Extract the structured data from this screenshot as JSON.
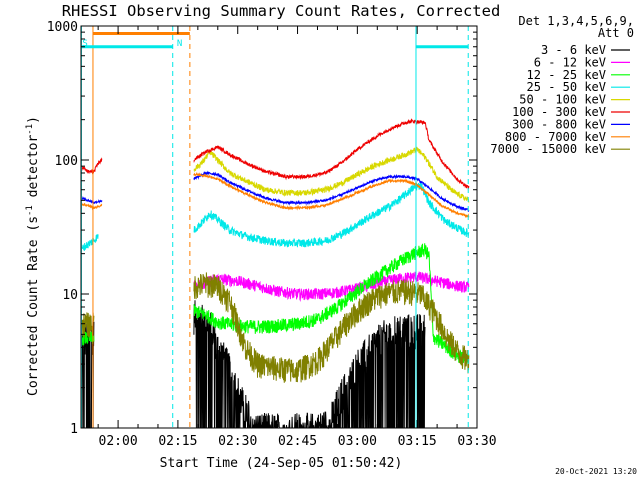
{
  "chart_data": {
    "type": "line",
    "title": "RHESSI Observing Summary Count Rates, Corrected",
    "xlabel": "Start Time (24-Sep-05 01:50:42)",
    "ylabel": "Corrected Count Rate (s",
    "ylabel_sup": "-1",
    "ylabel_mid": " detector",
    "ylabel_sup2": "-1",
    "ylabel_end": ")",
    "yscale": "log",
    "xlim": [
      110.7,
      210.0
    ],
    "ylim": [
      1,
      1000
    ],
    "x_unit": "minutes after 00:00 UT",
    "xticks": [
      {
        "v": 120,
        "label": "02:00"
      },
      {
        "v": 135,
        "label": "02:15"
      },
      {
        "v": 150,
        "label": "02:30"
      },
      {
        "v": 165,
        "label": "02:45"
      },
      {
        "v": 180,
        "label": "03:00"
      },
      {
        "v": 195,
        "label": "03:15"
      },
      {
        "v": 210,
        "label": "03:30"
      }
    ],
    "yticks": [
      {
        "v": 1,
        "label": "1"
      },
      {
        "v": 10,
        "label": "10"
      },
      {
        "v": 100,
        "label": "100"
      },
      {
        "v": 1000,
        "label": "1000"
      }
    ],
    "legend": {
      "header1": "Det 1,3,4,5,6,9,",
      "header2": "Att 0",
      "placement": "right"
    },
    "corner_label": "20-Oct-2021 13:20",
    "flag_labels": [
      {
        "text": "S",
        "x": 110.8
      },
      {
        "text": "N",
        "x": 134.5
      }
    ],
    "flags": [
      {
        "color": "#00e8e8",
        "start": 110.7,
        "end": 133.7,
        "y": 700
      },
      {
        "color": "#ff7f00",
        "start": 113.7,
        "end": 138.0,
        "y": 880
      },
      {
        "color": "#00e8e8",
        "start": 194.7,
        "end": 207.8,
        "y": 700
      }
    ],
    "vlines": [
      {
        "x": 110.8,
        "color": "#00e8e8",
        "style": "solid"
      },
      {
        "x": 113.7,
        "color": "#ff7f00",
        "style": "solid"
      },
      {
        "x": 133.7,
        "color": "#00e8e8",
        "style": "dashed"
      },
      {
        "x": 138.0,
        "color": "#ff7f00",
        "style": "dashed"
      },
      {
        "x": 194.7,
        "color": "#00e8e8",
        "style": "solid"
      },
      {
        "x": 207.8,
        "color": "#00e8e8",
        "style": "dashed"
      }
    ],
    "series": [
      {
        "name": "3 - 6 keV",
        "color": "#000000",
        "noise": 0.3,
        "rail": 1.0,
        "segments": [
          [
            [
              111.0,
              4.5
            ],
            [
              114.0,
              5.0
            ]
          ],
          [
            [
              139.0,
              7.0
            ],
            [
              141.0,
              6.5
            ],
            [
              143.0,
              6.0
            ],
            [
              145.0,
              4.0
            ],
            [
              147.0,
              3.2
            ],
            [
              149.0,
              2.3
            ],
            [
              151.0,
              1.6
            ],
            [
              153.0,
              1.2
            ],
            [
              155.0,
              1.0
            ],
            [
              160.0,
              1.0
            ],
            [
              165.0,
              1.0
            ],
            [
              170.0,
              1.0
            ],
            [
              173.0,
              1.1
            ],
            [
              176.0,
              1.8
            ],
            [
              180.0,
              3.0
            ],
            [
              184.0,
              4.2
            ],
            [
              187.0,
              5.0
            ],
            [
              191.0,
              5.5
            ],
            [
              195.0,
              5.5
            ],
            [
              197.0,
              5.5
            ]
          ]
        ]
      },
      {
        "name": "6 - 12 keV",
        "color": "#ff00ff",
        "noise": 0.1,
        "segments": [
          [
            [
              139.0,
              11.5
            ],
            [
              145.0,
              13.0
            ],
            [
              150.0,
              12.5
            ],
            [
              155.0,
              11.5
            ],
            [
              160.0,
              10.5
            ],
            [
              165.0,
              10.0
            ],
            [
              170.0,
              10.0
            ],
            [
              175.0,
              10.3
            ],
            [
              180.0,
              11.0
            ],
            [
              185.0,
              12.0
            ],
            [
              190.0,
              13.0
            ],
            [
              195.0,
              13.5
            ],
            [
              200.0,
              12.5
            ],
            [
              205.0,
              11.5
            ],
            [
              208.0,
              11.2
            ]
          ]
        ]
      },
      {
        "name": "12 - 25 keV",
        "color": "#00ff00",
        "noise": 0.12,
        "segments": [
          [
            [
              111.0,
              4.7
            ],
            [
              114.0,
              4.7
            ]
          ],
          [
            [
              139.0,
              7.5
            ],
            [
              142.0,
              7.0
            ],
            [
              145.0,
              6.2
            ],
            [
              150.0,
              5.8
            ],
            [
              155.0,
              5.7
            ],
            [
              160.0,
              5.8
            ],
            [
              165.0,
              6.0
            ],
            [
              170.0,
              6.5
            ],
            [
              175.0,
              8.0
            ],
            [
              180.0,
              10.5
            ],
            [
              185.0,
              13.5
            ],
            [
              190.0,
              17.0
            ],
            [
              194.0,
              20.0
            ],
            [
              197.0,
              21.5
            ],
            [
              198.0,
              19.0
            ],
            [
              199.0,
              4.8
            ],
            [
              205.0,
              3.5
            ],
            [
              208.0,
              3.2
            ]
          ]
        ]
      },
      {
        "name": "25 - 50 keV",
        "color": "#00e8e8",
        "noise": 0.07,
        "segments": [
          [
            [
              111.0,
              22.0
            ],
            [
              113.0,
              24.0
            ],
            [
              115.0,
              27.0
            ]
          ],
          [
            [
              139.0,
              30.0
            ],
            [
              141.0,
              34.0
            ],
            [
              143.0,
              40.0
            ],
            [
              145.0,
              36.0
            ],
            [
              148.0,
              30.0
            ],
            [
              152.0,
              27.0
            ],
            [
              157.0,
              25.0
            ],
            [
              162.0,
              24.0
            ],
            [
              167.0,
              24.0
            ],
            [
              172.0,
              25.0
            ],
            [
              176.0,
              28.0
            ],
            [
              180.0,
              33.0
            ],
            [
              184.0,
              39.0
            ],
            [
              188.0,
              45.0
            ],
            [
              191.0,
              52.0
            ],
            [
              194.0,
              62.0
            ],
            [
              196.0,
              65.0
            ],
            [
              198.0,
              48.0
            ],
            [
              202.0,
              35.0
            ],
            [
              206.0,
              30.0
            ],
            [
              208.0,
              28.0
            ]
          ]
        ]
      },
      {
        "name": "50 - 100 keV",
        "color": "#d8d800",
        "noise": 0.05,
        "segments": [
          [
            [
              139.0,
              85.0
            ],
            [
              141.0,
              95.0
            ],
            [
              143.0,
              115.0
            ],
            [
              145.0,
              100.0
            ],
            [
              148.0,
              80.0
            ],
            [
              152.0,
              70.0
            ],
            [
              157.0,
              60.0
            ],
            [
              162.0,
              57.0
            ],
            [
              167.0,
              57.0
            ],
            [
              172.0,
              60.0
            ],
            [
              176.0,
              67.0
            ],
            [
              180.0,
              78.0
            ],
            [
              184.0,
              90.0
            ],
            [
              188.0,
              100.0
            ],
            [
              192.0,
              110.0
            ],
            [
              195.0,
              120.0
            ],
            [
              197.0,
              105.0
            ],
            [
              200.0,
              75.0
            ],
            [
              204.0,
              58.0
            ],
            [
              208.0,
              50.0
            ]
          ]
        ]
      },
      {
        "name": "100 - 300 keV",
        "color": "#ee0000",
        "noise": 0.03,
        "segments": [
          [
            [
              111.0,
              88.0
            ],
            [
              112.5,
              82.0
            ],
            [
              114.0,
              82.0
            ],
            [
              115.0,
              95.0
            ],
            [
              116.0,
              100.0
            ]
          ],
          [
            [
              139.0,
              100.0
            ],
            [
              142.0,
              115.0
            ],
            [
              145.0,
              125.0
            ],
            [
              148.0,
              110.0
            ],
            [
              152.0,
              95.0
            ],
            [
              157.0,
              82.0
            ],
            [
              162.0,
              75.0
            ],
            [
              167.0,
              75.0
            ],
            [
              172.0,
              80.0
            ],
            [
              176.0,
              95.0
            ],
            [
              180.0,
              120.0
            ],
            [
              184.0,
              145.0
            ],
            [
              188.0,
              170.0
            ],
            [
              192.0,
              190.0
            ],
            [
              194.0,
              195.0
            ],
            [
              197.0,
              190.0
            ],
            [
              198.0,
              140.0
            ],
            [
              201.0,
              100.0
            ],
            [
              205.0,
              72.0
            ],
            [
              208.0,
              62.0
            ]
          ]
        ]
      },
      {
        "name": "300 - 800 keV",
        "color": "#0000ff",
        "noise": 0.02,
        "segments": [
          [
            [
              111.0,
              52.0
            ],
            [
              114.0,
              48.0
            ],
            [
              116.0,
              50.0
            ]
          ],
          [
            [
              139.0,
              72.0
            ],
            [
              142.0,
              80.0
            ],
            [
              145.0,
              78.0
            ],
            [
              148.0,
              68.0
            ],
            [
              152.0,
              60.0
            ],
            [
              157.0,
              52.0
            ],
            [
              162.0,
              48.0
            ],
            [
              167.0,
              48.0
            ],
            [
              172.0,
              50.0
            ],
            [
              176.0,
              55.0
            ],
            [
              180.0,
              62.0
            ],
            [
              184.0,
              70.0
            ],
            [
              188.0,
              75.0
            ],
            [
              192.0,
              75.0
            ],
            [
              195.0,
              72.0
            ],
            [
              198.0,
              62.0
            ],
            [
              201.0,
              52.0
            ],
            [
              205.0,
              45.0
            ],
            [
              208.0,
              42.0
            ]
          ]
        ]
      },
      {
        "name": "800 - 7000 keV",
        "color": "#ff7f00",
        "noise": 0.02,
        "segments": [
          [
            [
              111.0,
              47.0
            ],
            [
              114.0,
              44.0
            ],
            [
              116.0,
              46.0
            ]
          ],
          [
            [
              139.0,
              78.0
            ],
            [
              142.0,
              76.0
            ],
            [
              145.0,
              72.0
            ],
            [
              148.0,
              64.0
            ],
            [
              152.0,
              56.0
            ],
            [
              157.0,
              48.0
            ],
            [
              162.0,
              44.0
            ],
            [
              167.0,
              44.0
            ],
            [
              172.0,
              46.0
            ],
            [
              176.0,
              51.0
            ],
            [
              180.0,
              57.0
            ],
            [
              184.0,
              64.0
            ],
            [
              188.0,
              70.0
            ],
            [
              192.0,
              70.0
            ],
            [
              195.0,
              65.0
            ],
            [
              198.0,
              55.0
            ],
            [
              201.0,
              46.0
            ],
            [
              205.0,
              40.0
            ],
            [
              208.0,
              38.0
            ]
          ]
        ]
      },
      {
        "name": "7000 - 15000 keV",
        "color": "#808000",
        "noise": 0.22,
        "segments": [
          [
            [
              111.0,
              6.0
            ],
            [
              114.0,
              6.0
            ]
          ],
          [
            [
              139.0,
              11.5
            ],
            [
              142.0,
              12.0
            ],
            [
              145.0,
              11.5
            ],
            [
              148.0,
              9.0
            ],
            [
              150.0,
              6.0
            ],
            [
              152.0,
              4.0
            ],
            [
              155.0,
              3.0
            ],
            [
              160.0,
              2.8
            ],
            [
              165.0,
              2.7
            ],
            [
              170.0,
              3.2
            ],
            [
              174.0,
              4.5
            ],
            [
              178.0,
              6.5
            ],
            [
              182.0,
              8.5
            ],
            [
              186.0,
              10.0
            ],
            [
              190.0,
              10.5
            ],
            [
              193.0,
              10.5
            ],
            [
              196.0,
              10.0
            ],
            [
              199.0,
              7.5
            ],
            [
              203.0,
              4.5
            ],
            [
              206.0,
              3.5
            ],
            [
              208.0,
              3.2
            ]
          ]
        ]
      }
    ]
  }
}
